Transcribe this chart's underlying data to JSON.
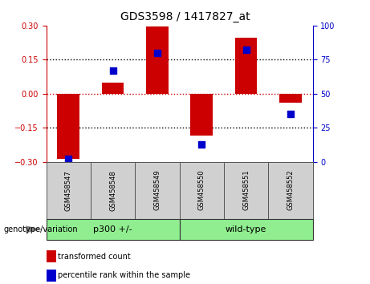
{
  "title": "GDS3598 / 1417827_at",
  "samples": [
    "GSM458547",
    "GSM458548",
    "GSM458549",
    "GSM458550",
    "GSM458551",
    "GSM458552"
  ],
  "transformed_counts": [
    -0.285,
    0.05,
    0.295,
    -0.185,
    0.245,
    -0.04
  ],
  "percentile_ranks": [
    2,
    67,
    80,
    13,
    82,
    35
  ],
  "groups": [
    "p300 +/-",
    "p300 +/-",
    "p300 +/-",
    "wild-type",
    "wild-type",
    "wild-type"
  ],
  "bar_color": "#CC0000",
  "dot_color": "#0000CC",
  "left_ylim": [
    -0.3,
    0.3
  ],
  "right_ylim": [
    0,
    100
  ],
  "left_yticks": [
    -0.3,
    -0.15,
    0,
    0.15,
    0.3
  ],
  "right_yticks": [
    0,
    25,
    50,
    75,
    100
  ],
  "hline_color": "#CC0000",
  "dotted_color": "#000000",
  "legend_red_label": "transformed count",
  "legend_blue_label": "percentile rank within the sample",
  "genotype_label": "genotype/variation",
  "green_color": "#90EE90",
  "gray_color": "#D0D0D0",
  "bar_width": 0.5,
  "dot_size": 30,
  "title_fontsize": 10,
  "tick_fontsize": 7,
  "label_fontsize": 6,
  "group_fontsize": 8,
  "legend_fontsize": 7,
  "genotype_fontsize": 7
}
